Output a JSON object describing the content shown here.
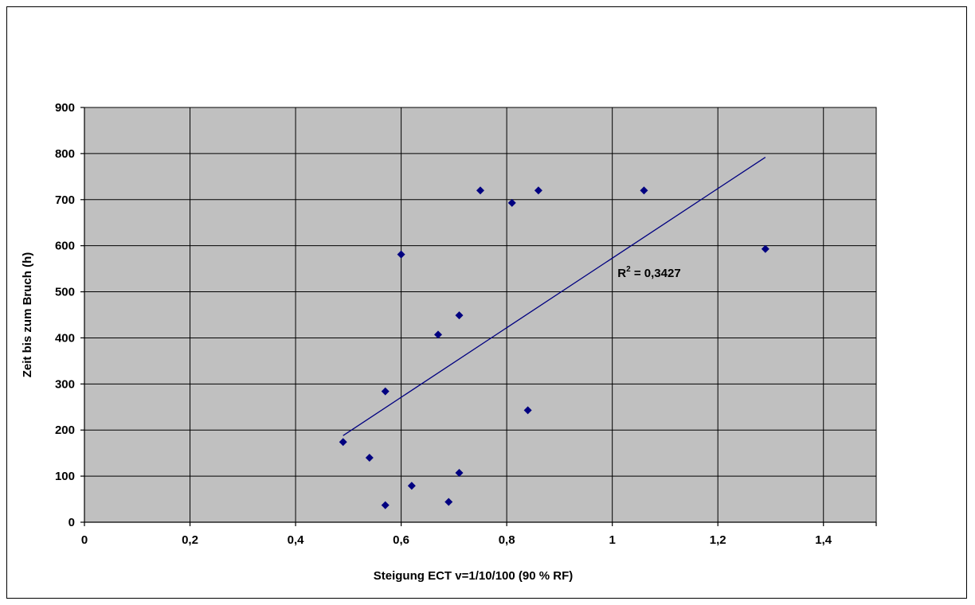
{
  "chart_data": {
    "type": "scatter",
    "xlabel": "Steigung ECT v=1/10/100 (90 % RF)",
    "ylabel": "Zeit bis zum Bruch (h)",
    "xlim": [
      0,
      1.5
    ],
    "ylim": [
      0,
      900
    ],
    "x_ticks": [
      "0",
      "0,2",
      "0,4",
      "0,6",
      "0,8",
      "1",
      "1,2",
      "1,4"
    ],
    "x_tick_values": [
      0,
      0.2,
      0.4,
      0.6,
      0.8,
      1.0,
      1.2,
      1.4
    ],
    "y_ticks": [
      "0",
      "100",
      "200",
      "300",
      "400",
      "500",
      "600",
      "700",
      "800",
      "900"
    ],
    "y_tick_values": [
      0,
      100,
      200,
      300,
      400,
      500,
      600,
      700,
      800,
      900
    ],
    "grid": true,
    "plot_background": "#c0c0c0",
    "marker_color": "#000080",
    "trendline_color": "#000080",
    "series": [
      {
        "points": [
          {
            "x": 0.49,
            "y": 174
          },
          {
            "x": 0.54,
            "y": 140
          },
          {
            "x": 0.57,
            "y": 37
          },
          {
            "x": 0.57,
            "y": 284
          },
          {
            "x": 0.6,
            "y": 581
          },
          {
            "x": 0.62,
            "y": 79
          },
          {
            "x": 0.67,
            "y": 407
          },
          {
            "x": 0.69,
            "y": 44
          },
          {
            "x": 0.71,
            "y": 107
          },
          {
            "x": 0.71,
            "y": 449
          },
          {
            "x": 0.75,
            "y": 720
          },
          {
            "x": 0.81,
            "y": 693
          },
          {
            "x": 0.84,
            "y": 243
          },
          {
            "x": 0.86,
            "y": 720
          },
          {
            "x": 1.06,
            "y": 720
          },
          {
            "x": 1.29,
            "y": 593
          }
        ]
      }
    ],
    "trendline": {
      "type": "linear",
      "start": {
        "x": 0.49,
        "y": 188
      },
      "end": {
        "x": 1.29,
        "y": 792
      }
    },
    "annotation": {
      "r2_label": "R",
      "r2_sup": "2",
      "r2_value": " = 0,3427"
    }
  }
}
